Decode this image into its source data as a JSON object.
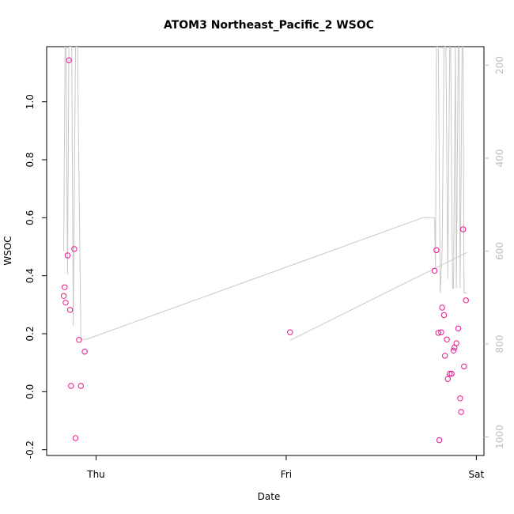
{
  "chart_data": {
    "type": "scatter",
    "title": "ATOM3 Northeast_Pacific_2 WSOC",
    "xlabel": "Date",
    "ylabel": "WSOC",
    "x_ticks": [
      "Thu",
      "Fri",
      "Sat"
    ],
    "x_range": [
      -0.26,
      2.04
    ],
    "y_ticks": [
      "-0.2",
      "0.0",
      "0.2",
      "0.4",
      "0.6",
      "0.8",
      "1.0"
    ],
    "y_tick_values": [
      -0.2,
      0.0,
      0.2,
      0.4,
      0.6,
      0.8,
      1.0
    ],
    "ylim": [
      -0.22,
      1.19
    ],
    "y2_ticks": [
      "200",
      "400",
      "600",
      "800",
      "1000"
    ],
    "y2_tick_values": [
      200,
      400,
      600,
      800,
      1000
    ],
    "y2lim": [
      1040,
      160
    ],
    "grid": false,
    "series": [
      {
        "type": "scatter",
        "color": "#e8178d",
        "points": [
          [
            -0.17,
            0.33
          ],
          [
            -0.165,
            0.36
          ],
          [
            -0.16,
            0.307
          ],
          [
            -0.15,
            0.47
          ],
          [
            -0.143,
            1.143
          ],
          [
            -0.137,
            0.282
          ],
          [
            -0.132,
            0.02
          ],
          [
            -0.115,
            0.492
          ],
          [
            -0.108,
            -0.16
          ],
          [
            -0.09,
            0.179
          ],
          [
            -0.08,
            0.02
          ],
          [
            -0.06,
            0.138
          ],
          [
            1.02,
            0.205
          ],
          [
            1.78,
            0.417
          ],
          [
            1.79,
            0.488
          ],
          [
            1.8,
            0.203
          ],
          [
            1.805,
            -0.167
          ],
          [
            1.815,
            0.205
          ],
          [
            1.82,
            0.29
          ],
          [
            1.83,
            0.264
          ],
          [
            1.835,
            0.124
          ],
          [
            1.845,
            0.18
          ],
          [
            1.85,
            0.044
          ],
          [
            1.86,
            0.062
          ],
          [
            1.87,
            0.062
          ],
          [
            1.88,
            0.142
          ],
          [
            1.885,
            0.152
          ],
          [
            1.895,
            0.167
          ],
          [
            1.905,
            0.218
          ],
          [
            1.915,
            -0.023
          ],
          [
            1.92,
            -0.07
          ],
          [
            1.93,
            0.56
          ],
          [
            1.935,
            0.087
          ],
          [
            1.945,
            0.315
          ]
        ]
      },
      {
        "type": "line",
        "color": "#c8c8c8",
        "axis": "right",
        "points": [
          [
            -0.17,
            600
          ],
          [
            -0.163,
            160
          ],
          [
            -0.158,
            160
          ],
          [
            -0.15,
            650
          ],
          [
            -0.143,
            160
          ],
          [
            -0.137,
            160
          ],
          [
            -0.128,
            160
          ],
          [
            -0.12,
            760
          ],
          [
            -0.113,
            400
          ],
          [
            -0.108,
            160
          ],
          [
            -0.098,
            160
          ],
          [
            -0.091,
            400
          ],
          [
            -0.08,
            790
          ],
          [
            -0.06,
            790
          ],
          [
            -0.05,
            790
          ],
          [
            1.72,
            528
          ],
          [
            1.78,
            528
          ],
          [
            1.785,
            635
          ],
          [
            1.79,
            160
          ],
          [
            1.8,
            160
          ],
          [
            1.81,
            690
          ],
          [
            1.82,
            600
          ],
          [
            1.83,
            160
          ],
          [
            1.84,
            160
          ],
          [
            1.85,
            660
          ],
          [
            1.86,
            160
          ],
          [
            1.865,
            160
          ],
          [
            1.875,
            680
          ],
          [
            1.88,
            680
          ],
          [
            1.89,
            160
          ],
          [
            1.895,
            680
          ],
          [
            1.905,
            160
          ],
          [
            1.91,
            160
          ],
          [
            1.915,
            680
          ],
          [
            1.925,
            160
          ],
          [
            1.93,
            160
          ],
          [
            1.935,
            690
          ],
          [
            1.95,
            690
          ]
        ]
      },
      {
        "type": "line",
        "color": "#c8c8c8",
        "axis": "right",
        "points": [
          [
            1.02,
            792
          ],
          [
            1.95,
            603
          ]
        ]
      }
    ]
  }
}
